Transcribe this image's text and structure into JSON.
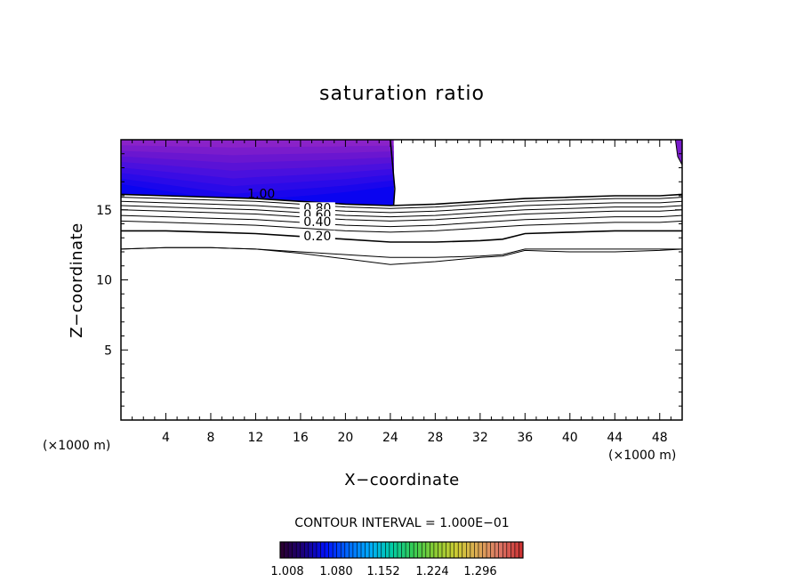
{
  "chart_data": {
    "type": "contour",
    "title": "saturation ratio",
    "xlabel": "X−coordinate",
    "ylabel": "Z−coordinate",
    "x_unit": "(×1000 m)",
    "z_unit": "(×1000 m)",
    "xlim": [
      0,
      50
    ],
    "ylim": [
      0,
      20
    ],
    "x_ticks": [
      "4",
      "8",
      "12",
      "16",
      "20",
      "24",
      "28",
      "32",
      "36",
      "40",
      "44",
      "48"
    ],
    "y_ticks": [
      "5",
      "10",
      "15"
    ],
    "contour_interval_text": "CONTOUR INTERVAL = 1.000E−01",
    "contour_labels": [
      {
        "text": "1.00",
        "x": 12.5,
        "z": 15.9
      },
      {
        "text": "0.80",
        "x": 17.5,
        "z": 14.9
      },
      {
        "text": "0.60",
        "x": 17.5,
        "z": 14.4
      },
      {
        "text": "0.40",
        "x": 17.5,
        "z": 13.9
      },
      {
        "text": "0.20",
        "x": 17.5,
        "z": 12.9
      }
    ],
    "contours": [
      {
        "level": 1.0,
        "x": [
          0,
          4,
          8,
          12,
          16,
          20,
          24,
          28,
          32,
          36,
          40,
          44,
          48,
          50
        ],
        "z": [
          16.1,
          16.0,
          15.9,
          15.8,
          15.6,
          15.4,
          15.3,
          15.4,
          15.6,
          15.8,
          15.9,
          16.0,
          16.0,
          16.1
        ]
      },
      {
        "level": 0.9,
        "x": [
          0,
          4,
          8,
          12,
          16,
          20,
          24,
          28,
          32,
          36,
          40,
          44,
          48,
          50
        ],
        "z": [
          15.9,
          15.8,
          15.7,
          15.6,
          15.4,
          15.2,
          15.1,
          15.2,
          15.4,
          15.6,
          15.7,
          15.8,
          15.8,
          15.9
        ]
      },
      {
        "level": 0.8,
        "x": [
          0,
          4,
          8,
          12,
          16,
          20,
          24,
          28,
          32,
          36,
          40,
          44,
          48,
          50
        ],
        "z": [
          15.6,
          15.5,
          15.4,
          15.3,
          15.1,
          14.9,
          14.8,
          14.9,
          15.1,
          15.3,
          15.4,
          15.5,
          15.5,
          15.6
        ]
      },
      {
        "level": 0.7,
        "x": [
          0,
          4,
          8,
          12,
          16,
          20,
          24,
          28,
          32,
          36,
          40,
          44,
          48,
          50
        ],
        "z": [
          15.3,
          15.2,
          15.1,
          15.0,
          14.8,
          14.6,
          14.5,
          14.6,
          14.8,
          15.0,
          15.1,
          15.2,
          15.2,
          15.3
        ]
      },
      {
        "level": 0.6,
        "x": [
          0,
          4,
          8,
          12,
          16,
          20,
          24,
          28,
          32,
          36,
          40,
          44,
          48,
          50
        ],
        "z": [
          15.0,
          14.9,
          14.8,
          14.7,
          14.5,
          14.3,
          14.2,
          14.3,
          14.5,
          14.7,
          14.8,
          14.9,
          14.9,
          15.0
        ]
      },
      {
        "level": 0.5,
        "x": [
          0,
          4,
          8,
          12,
          16,
          20,
          24,
          28,
          32,
          36,
          40,
          44,
          48,
          50
        ],
        "z": [
          14.6,
          14.5,
          14.4,
          14.3,
          14.1,
          13.9,
          13.8,
          13.9,
          14.1,
          14.3,
          14.4,
          14.5,
          14.5,
          14.6
        ]
      },
      {
        "level": 0.4,
        "x": [
          0,
          4,
          8,
          12,
          16,
          20,
          24,
          28,
          32,
          36,
          40,
          44,
          48,
          50
        ],
        "z": [
          14.2,
          14.1,
          14.0,
          13.9,
          13.7,
          13.5,
          13.4,
          13.5,
          13.7,
          13.9,
          14.0,
          14.1,
          14.1,
          14.2
        ]
      },
      {
        "level": 0.3,
        "x": [
          0,
          4,
          8,
          12,
          16,
          20,
          24,
          28,
          32,
          34,
          36,
          40,
          44,
          48,
          50
        ],
        "z": [
          13.5,
          13.5,
          13.4,
          13.3,
          13.1,
          12.9,
          12.7,
          12.7,
          12.8,
          12.9,
          13.3,
          13.4,
          13.5,
          13.5,
          13.5
        ]
      },
      {
        "level": 0.2,
        "x": [
          0,
          4,
          8,
          12,
          16,
          20,
          24,
          28,
          32,
          34,
          36,
          40,
          44,
          48,
          50
        ],
        "z": [
          12.2,
          12.3,
          12.3,
          12.2,
          12.0,
          11.8,
          11.6,
          11.6,
          11.7,
          11.8,
          12.2,
          12.2,
          12.2,
          12.2,
          12.2
        ]
      },
      {
        "level": 0.1,
        "x": [
          0,
          4,
          8,
          12,
          16,
          20,
          24,
          28,
          32,
          34,
          36,
          40,
          44,
          48,
          50
        ],
        "z": [
          12.2,
          12.3,
          12.3,
          12.2,
          11.9,
          11.5,
          11.1,
          11.3,
          11.6,
          11.7,
          12.1,
          12.0,
          12.0,
          12.1,
          12.2
        ]
      }
    ],
    "filled_region": {
      "description_level": ">1.0",
      "x_range": [
        0,
        24.3
      ],
      "z_range": [
        15.4,
        20
      ]
    },
    "colorbar": {
      "ticks": [
        "1.008",
        "1.080",
        "1.152",
        "1.224",
        "1.296"
      ],
      "colors": [
        "#2a0033",
        "#1a0080",
        "#0010ff",
        "#0066ff",
        "#00aaff",
        "#00ccaa",
        "#33cc55",
        "#88cc33",
        "#cccc33",
        "#ddaa55",
        "#dd7766",
        "#cc3333"
      ]
    },
    "fill_colors": [
      "#8a22c8",
      "#7a1ccc",
      "#6a16d0",
      "#5a12d6",
      "#4a10de",
      "#3a0ce4",
      "#2a0ae8",
      "#1a06ec",
      "#0a04f0"
    ]
  }
}
